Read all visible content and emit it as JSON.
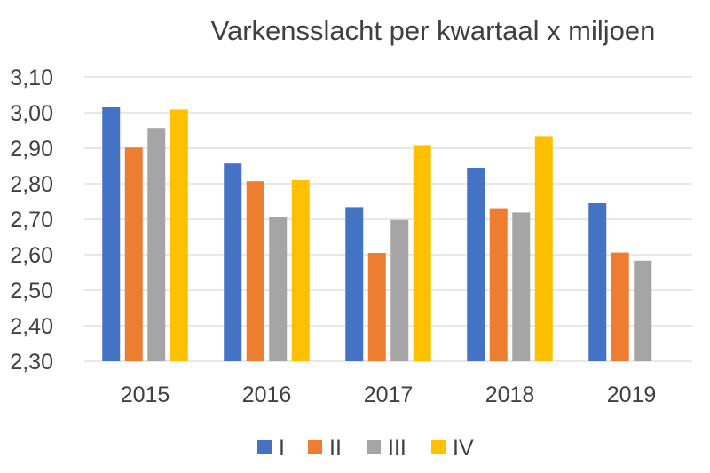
{
  "chart_data": {
    "type": "bar",
    "title": "Varkensslacht per kwartaal x miljoen",
    "xlabel": "",
    "ylabel": "",
    "categories": [
      "2015",
      "2016",
      "2017",
      "2018",
      "2019"
    ],
    "series": [
      {
        "name": "I",
        "color": "#4472C4",
        "values": [
          3.015,
          2.857,
          2.734,
          2.845,
          2.745
        ]
      },
      {
        "name": "II",
        "color": "#ED7D31",
        "values": [
          2.902,
          2.807,
          2.605,
          2.731,
          2.606
        ]
      },
      {
        "name": "III",
        "color": "#A5A5A5",
        "values": [
          2.957,
          2.705,
          2.698,
          2.719,
          2.583
        ]
      },
      {
        "name": "IV",
        "color": "#FFC000",
        "values": [
          3.009,
          2.81,
          2.909,
          2.934,
          null
        ]
      }
    ],
    "ylim": [
      2.3,
      3.1
    ],
    "yticks": [
      "2,30",
      "2,40",
      "2,50",
      "2,60",
      "2,70",
      "2,80",
      "2,90",
      "3,00",
      "3,10"
    ],
    "grid": true,
    "legend": "bottom"
  }
}
